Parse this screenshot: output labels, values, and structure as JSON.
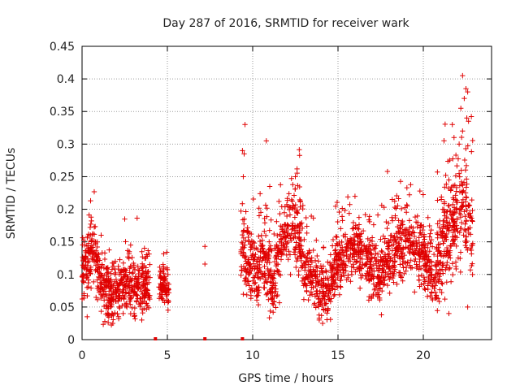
{
  "chart_data": {
    "type": "scatter",
    "title": "Day 287 of 2016, SRMTID for receiver wark",
    "xlabel": "GPS time / hours",
    "ylabel": "SRMTID / TECUs",
    "xlim": [
      0,
      24
    ],
    "ylim": [
      0,
      0.45
    ],
    "xticks": [
      0,
      5,
      10,
      15,
      20
    ],
    "yticks": [
      0,
      0.05,
      0.1,
      0.15,
      0.2,
      0.25,
      0.3,
      0.35,
      0.4,
      0.45
    ],
    "grid": true,
    "marker": "+",
    "color": "#e00000",
    "segments": [
      {
        "x_start": 0.0,
        "x_end": 4.0,
        "anchors": [
          [
            0.0,
            0.1
          ],
          [
            0.3,
            0.11
          ],
          [
            0.6,
            0.14
          ],
          [
            1.0,
            0.1
          ],
          [
            1.4,
            0.07
          ],
          [
            2.0,
            0.075
          ],
          [
            2.5,
            0.09
          ],
          [
            3.0,
            0.08
          ],
          [
            3.5,
            0.085
          ],
          [
            4.0,
            0.085
          ]
        ],
        "spread": 0.035,
        "count": 560
      },
      {
        "x_start": 4.5,
        "x_end": 5.1,
        "anchors": [
          [
            4.5,
            0.085
          ],
          [
            5.1,
            0.08
          ]
        ],
        "spread": 0.025,
        "count": 80
      },
      {
        "x_start": 9.3,
        "x_end": 13.0,
        "anchors": [
          [
            9.3,
            0.15
          ],
          [
            9.7,
            0.12
          ],
          [
            10.3,
            0.11
          ],
          [
            10.8,
            0.12
          ],
          [
            11.2,
            0.08
          ],
          [
            11.7,
            0.16
          ],
          [
            12.2,
            0.17
          ],
          [
            12.6,
            0.16
          ],
          [
            13.0,
            0.13
          ]
        ],
        "spread": 0.045,
        "count": 480
      },
      {
        "x_start": 13.0,
        "x_end": 16.8,
        "anchors": [
          [
            13.0,
            0.1
          ],
          [
            13.5,
            0.1
          ],
          [
            14.0,
            0.07
          ],
          [
            14.5,
            0.08
          ],
          [
            15.0,
            0.12
          ],
          [
            15.5,
            0.13
          ],
          [
            16.0,
            0.14
          ],
          [
            16.5,
            0.13
          ],
          [
            16.8,
            0.12
          ]
        ],
        "spread": 0.035,
        "count": 480
      },
      {
        "x_start": 16.8,
        "x_end": 20.8,
        "anchors": [
          [
            16.8,
            0.11
          ],
          [
            17.5,
            0.1
          ],
          [
            18.0,
            0.13
          ],
          [
            18.5,
            0.14
          ],
          [
            19.0,
            0.15
          ],
          [
            19.5,
            0.14
          ],
          [
            20.0,
            0.13
          ],
          [
            20.5,
            0.1
          ],
          [
            20.8,
            0.09
          ]
        ],
        "spread": 0.04,
        "count": 520
      },
      {
        "x_start": 20.8,
        "x_end": 22.9,
        "anchors": [
          [
            20.8,
            0.12
          ],
          [
            21.2,
            0.15
          ],
          [
            21.6,
            0.17
          ],
          [
            22.0,
            0.19
          ],
          [
            22.4,
            0.22
          ],
          [
            22.9,
            0.15
          ]
        ],
        "spread": 0.06,
        "count": 300
      }
    ],
    "extra_points": [
      [
        7.2,
        0.143
      ],
      [
        7.2,
        0.116
      ],
      [
        9.55,
        0.33
      ],
      [
        10.8,
        0.305
      ],
      [
        9.4,
        0.29
      ],
      [
        9.5,
        0.285
      ],
      [
        9.45,
        0.25
      ],
      [
        22.3,
        0.405
      ],
      [
        22.5,
        0.385
      ],
      [
        22.6,
        0.38
      ],
      [
        22.4,
        0.37
      ],
      [
        22.2,
        0.355
      ],
      [
        22.55,
        0.34
      ],
      [
        22.65,
        0.335
      ],
      [
        21.7,
        0.33
      ],
      [
        21.8,
        0.31
      ],
      [
        22.1,
        0.3
      ],
      [
        22.3,
        0.32
      ],
      [
        17.9,
        0.258
      ],
      [
        19.8,
        0.228
      ],
      [
        0.5,
        0.213
      ],
      [
        2.5,
        0.185
      ],
      [
        12.6,
        0.262
      ],
      [
        12.5,
        0.25
      ],
      [
        11.0,
        0.235
      ],
      [
        0.3,
        0.035
      ],
      [
        1.8,
        0.025
      ],
      [
        3.5,
        0.03
      ],
      [
        13.9,
        0.03
      ],
      [
        14.1,
        0.025
      ],
      [
        11.2,
        0.042
      ],
      [
        21.5,
        0.04
      ],
      [
        22.6,
        0.05
      ]
    ],
    "zero_markers": [
      4.3,
      7.2,
      9.4
    ]
  }
}
